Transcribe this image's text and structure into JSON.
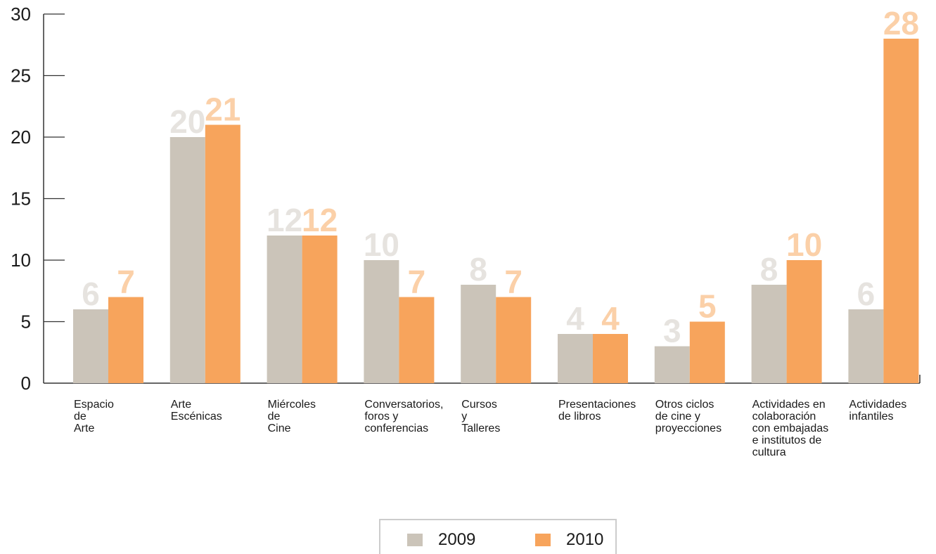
{
  "chart_data": {
    "type": "bar",
    "ylim": [
      0,
      30
    ],
    "yticks": [
      "0",
      "5",
      "10",
      "15",
      "20",
      "25",
      "30"
    ],
    "categories": [
      [
        "Espacio",
        "de",
        "Arte"
      ],
      [
        "Arte",
        "Escénicas"
      ],
      [
        "Miércoles",
        "de",
        "Cine"
      ],
      [
        "Conversatorios,",
        "foros y",
        "conferencias"
      ],
      [
        "Cursos",
        "y",
        "Talleres"
      ],
      [
        "Presentaciones",
        "de libros"
      ],
      [
        "Otros ciclos",
        "de cine y",
        "proyecciones"
      ],
      [
        "Actividades en",
        "colaboración",
        "con embajadas",
        "e institutos de",
        "cultura"
      ],
      [
        "Actividades",
        "infantiles"
      ]
    ],
    "series": [
      {
        "name": "2009",
        "values": [
          6,
          20,
          12,
          10,
          8,
          4,
          3,
          8,
          6
        ],
        "color": "#cbc4b9",
        "label_color": "#e6e3df"
      },
      {
        "name": "2010",
        "values": [
          7,
          21,
          12,
          7,
          7,
          4,
          5,
          10,
          28
        ],
        "color": "#f7a45c",
        "label_color": "#fbd0a8"
      }
    ],
    "legend_position": "bottom-center",
    "grid": false
  }
}
